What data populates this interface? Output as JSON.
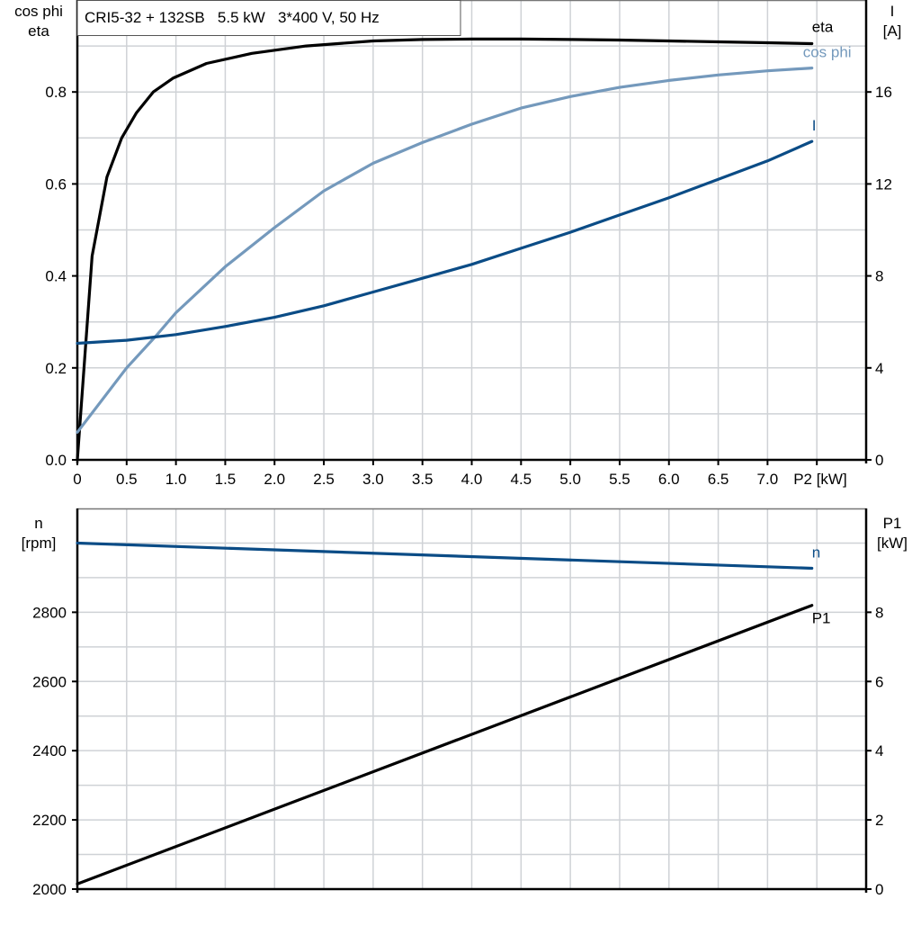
{
  "chart_data": [
    {
      "type": "line",
      "title": "CRI5-32 + 132SB   5.5 kW   3*400 V, 50 Hz",
      "ylabel_left": [
        "cos phi",
        "eta"
      ],
      "ylabel_right": [
        "I",
        "[A]"
      ],
      "xlabel": "P2 [kW]",
      "xlim": [
        0,
        8
      ],
      "ylim_left": [
        0,
        1.0
      ],
      "ylim_right": [
        0,
        20
      ],
      "grid": true,
      "x_ticks": [
        "0",
        "0.5",
        "1.0",
        "1.5",
        "2.0",
        "2.5",
        "3.0",
        "3.5",
        "4.0",
        "4.5",
        "5.0",
        "5.5",
        "6.0",
        "6.5",
        "7.0"
      ],
      "x_tick_values": [
        0,
        0.5,
        1,
        1.5,
        2,
        2.5,
        3,
        3.5,
        4,
        4.5,
        5,
        5.5,
        6,
        6.5,
        7
      ],
      "x_unit_label": "P2 [kW]",
      "y_ticks_left": [
        "0.0",
        "0.2",
        "0.4",
        "0.6",
        "0.8"
      ],
      "y_tick_values_left": [
        0,
        0.2,
        0.4,
        0.6,
        0.8
      ],
      "y_ticks_right": [
        "0",
        "4",
        "8",
        "12",
        "16"
      ],
      "y_tick_values_right": [
        0,
        4,
        8,
        12,
        16
      ],
      "series": [
        {
          "name": "eta",
          "axis": "left",
          "color": "#000000",
          "x": [
            0,
            0.15,
            0.3,
            0.45,
            0.6,
            0.77,
            0.97,
            1.31,
            1.77,
            2.32,
            3.0,
            3.5,
            4.0,
            4.5,
            5.0,
            5.5,
            6.0,
            6.5,
            7.0,
            7.45
          ],
          "y": [
            0,
            0.443,
            0.615,
            0.7,
            0.755,
            0.8,
            0.83,
            0.862,
            0.884,
            0.9,
            0.911,
            0.914,
            0.915,
            0.915,
            0.914,
            0.913,
            0.911,
            0.909,
            0.907,
            0.905
          ]
        },
        {
          "name": "cos phi",
          "axis": "left",
          "color": "#7499BC",
          "x": [
            0,
            0.5,
            0.8,
            1.0,
            1.5,
            2.0,
            2.5,
            3.0,
            3.5,
            4.0,
            4.5,
            5.0,
            5.5,
            6.0,
            6.5,
            7.0,
            7.45
          ],
          "y": [
            0.06,
            0.2,
            0.27,
            0.32,
            0.42,
            0.505,
            0.585,
            0.645,
            0.69,
            0.73,
            0.765,
            0.79,
            0.81,
            0.825,
            0.837,
            0.846,
            0.852
          ]
        },
        {
          "name": "I",
          "axis": "right",
          "color": "#0B4C86",
          "x": [
            0,
            0.5,
            1.0,
            1.5,
            2.0,
            2.5,
            3.0,
            3.5,
            4.0,
            4.5,
            5.0,
            5.5,
            6.0,
            6.5,
            7.0,
            7.45
          ],
          "y": [
            5.07,
            5.2,
            5.45,
            5.8,
            6.2,
            6.7,
            7.3,
            7.9,
            8.5,
            9.2,
            9.9,
            10.65,
            11.4,
            12.2,
            13.0,
            13.85
          ]
        }
      ]
    },
    {
      "type": "line",
      "ylabel_left": [
        "n",
        "[rpm]"
      ],
      "ylabel_right": [
        "P1",
        "[kW]"
      ],
      "xlim": [
        0,
        8
      ],
      "ylim_left": [
        2000,
        3100
      ],
      "ylim_right": [
        0,
        11
      ],
      "grid": true,
      "y_ticks_left": [
        "2000",
        "2200",
        "2400",
        "2600",
        "2800"
      ],
      "y_tick_values_left": [
        2000,
        2200,
        2400,
        2600,
        2800
      ],
      "y_ticks_right": [
        "0",
        "2",
        "4",
        "6",
        "8"
      ],
      "y_tick_values_right": [
        0,
        2,
        4,
        6,
        8
      ],
      "series": [
        {
          "name": "n",
          "axis": "left",
          "color": "#0B4C86",
          "x": [
            0,
            7.45
          ],
          "y": [
            3000,
            2927
          ]
        },
        {
          "name": "P1",
          "axis": "right",
          "color": "#000000",
          "x": [
            0,
            7.45
          ],
          "y": [
            0.15,
            8.2
          ]
        }
      ]
    }
  ]
}
